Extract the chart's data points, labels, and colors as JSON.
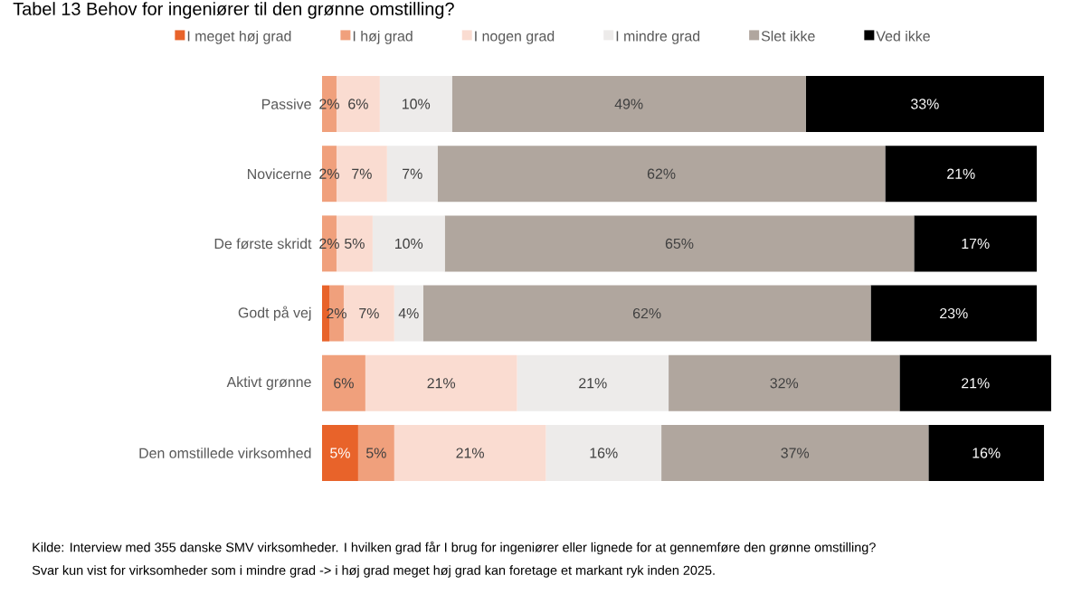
{
  "chart_data": {
    "type": "bar",
    "orientation": "horizontal",
    "stacked": true,
    "title": "Tabel 13 Behov for ingeniører til den grønne omstilling?",
    "categories": [
      "Passive",
      "Novicerne",
      "De første skridt",
      "Godt på vej",
      "Aktivt grønne",
      "Den omstillede virksomhed"
    ],
    "series": [
      {
        "name": "I meget høj grad",
        "color": "#e8632a",
        "values": [
          0,
          0,
          0,
          1,
          0,
          5
        ],
        "value_labels": [
          null,
          null,
          null,
          null,
          null,
          "5%"
        ]
      },
      {
        "name": "I høj grad",
        "color": "#f0a07c",
        "values": [
          2,
          2,
          2,
          2,
          6,
          5
        ],
        "value_labels": [
          "2%",
          "2%",
          "2%",
          "2%",
          "6%",
          "5%"
        ]
      },
      {
        "name": "I nogen grad",
        "color": "#fadcd1",
        "values": [
          6,
          7,
          5,
          7,
          21,
          21
        ],
        "value_labels": [
          "6%",
          "7%",
          "5%",
          "7%",
          "21%",
          "21%"
        ]
      },
      {
        "name": "I mindre grad",
        "color": "#edebea",
        "values": [
          10,
          7,
          10,
          4,
          21,
          16
        ],
        "value_labels": [
          "10%",
          "7%",
          "10%",
          "4%",
          "21%",
          "16%"
        ]
      },
      {
        "name": "Slet ikke",
        "color": "#b0a69e",
        "values": [
          49,
          62,
          65,
          62,
          32,
          37
        ],
        "value_labels": [
          "49%",
          "62%",
          "65%",
          "62%",
          "32%",
          "37%"
        ]
      },
      {
        "name": "Ved ikke",
        "color": "#000000",
        "values": [
          33,
          21,
          17,
          23,
          21,
          16
        ],
        "value_labels": [
          "33%",
          "21%",
          "17%",
          "23%",
          "21%",
          "16%"
        ]
      }
    ],
    "xlim": [
      0,
      101
    ],
    "legend": "top",
    "annotations": [
      "Kilde:  Interview med 355 danske SMV virksomheder. I hvilken grad får I brug for ingeniører eller lignede for at gennemføre den grønne omstilling?",
      "Svar kun vist for virksomheder som i mindre grad -> i høj grad meget høj grad kan foretage et markant ryk inden 2025."
    ]
  }
}
